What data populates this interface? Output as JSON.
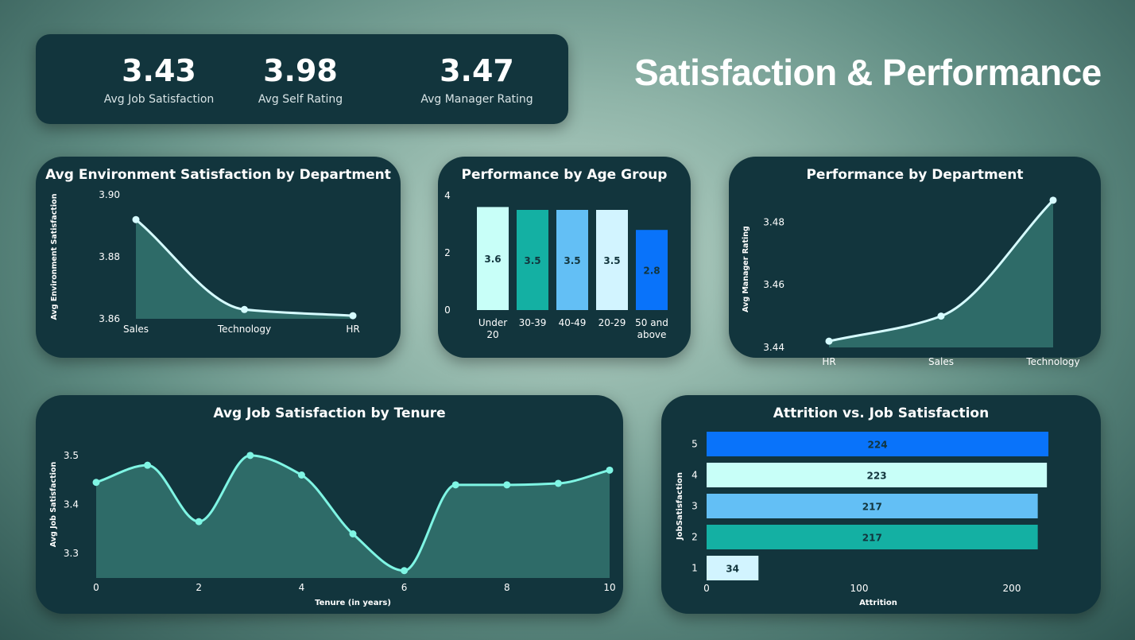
{
  "title": "Satisfaction & Performance",
  "kpis": [
    {
      "value": "3.43",
      "label": "Avg Job Satisfaction"
    },
    {
      "value": "3.98",
      "label": "Avg Self Rating"
    },
    {
      "value": "3.47",
      "label": "Avg Manager Rating"
    }
  ],
  "colors": {
    "panel": "#12353d",
    "area": "#2e6b68",
    "line_light": "#d6fbff",
    "line_mint": "#7ff5e4",
    "cyan_pale": "#c8fff8",
    "teal": "#14b0a3",
    "sky": "#63bff5",
    "pale": "#d2f4ff",
    "blue": "#0973fa"
  },
  "chart_data": [
    {
      "id": "env",
      "type": "area",
      "title": "Avg Environment Satisfaction by Department",
      "xlabel": "",
      "ylabel": "Avg Environment Satisfaction",
      "categories": [
        "Sales",
        "Technology",
        "HR"
      ],
      "values": [
        3.892,
        3.863,
        3.861
      ],
      "ylim": [
        3.86,
        3.9
      ],
      "yticks": [
        3.86,
        3.88,
        3.9
      ],
      "ytick_labels": [
        "3.86",
        "3.88",
        "3.90"
      ]
    },
    {
      "id": "age",
      "type": "bar",
      "title": "Performance by Age Group",
      "categories": [
        [
          "Under",
          "20"
        ],
        [
          "30-39"
        ],
        [
          "40-49"
        ],
        [
          "20-29"
        ],
        [
          "50 and",
          "above"
        ]
      ],
      "values": [
        3.6,
        3.5,
        3.5,
        3.5,
        2.8
      ],
      "data_labels": [
        "3.6",
        "3.5",
        "3.5",
        "3.5",
        "2.8"
      ],
      "bar_colors": [
        "#c8fff8",
        "#14b0a3",
        "#63bff5",
        "#d2f4ff",
        "#0973fa"
      ],
      "ylim": [
        0,
        4
      ],
      "yticks": [
        0,
        2,
        4
      ],
      "ytick_labels": [
        "0",
        "2",
        "4"
      ]
    },
    {
      "id": "dept",
      "type": "area",
      "title": "Performance by Department",
      "xlabel": "",
      "ylabel": "Avg Manager Rating",
      "categories": [
        "HR",
        "Sales",
        "Technology"
      ],
      "values": [
        3.442,
        3.45,
        3.487
      ],
      "ylim": [
        3.44,
        3.49
      ],
      "yticks": [
        3.44,
        3.46,
        3.48
      ],
      "ytick_labels": [
        "3.44",
        "3.46",
        "3.48"
      ]
    },
    {
      "id": "tenure",
      "type": "area",
      "title": "Avg Job Satisfaction by Tenure",
      "xlabel": "Tenure (in years)",
      "ylabel": "Avg Job Satisfaction",
      "x": [
        0,
        1,
        2,
        3,
        4,
        5,
        6,
        7,
        8,
        9,
        10
      ],
      "values": [
        3.445,
        3.48,
        3.365,
        3.5,
        3.46,
        3.34,
        3.265,
        3.44,
        3.44,
        3.443,
        3.47
      ],
      "xlim": [
        0,
        10
      ],
      "xticks": [
        0,
        2,
        4,
        6,
        8,
        10
      ],
      "xtick_labels": [
        "0",
        "2",
        "4",
        "6",
        "8",
        "10"
      ],
      "ylim": [
        3.25,
        3.55
      ],
      "yticks": [
        3.3,
        3.4,
        3.5
      ],
      "ytick_labels": [
        "3.3",
        "3.4",
        "3.5"
      ]
    },
    {
      "id": "attr",
      "type": "bar",
      "orientation": "horizontal",
      "title": "Attrition vs. Job Satisfaction",
      "xlabel": "Attrition",
      "ylabel": "JobSatisfaction",
      "categories": [
        "5",
        "4",
        "3",
        "2",
        "1"
      ],
      "values": [
        224,
        223,
        217,
        217,
        34
      ],
      "data_labels": [
        "224",
        "223",
        "217",
        "217",
        "34"
      ],
      "bar_colors": [
        "#0973fa",
        "#c8fff8",
        "#63bff5",
        "#14b0a3",
        "#d2f4ff"
      ],
      "xlim": [
        0,
        225
      ],
      "xticks": [
        0,
        100,
        200
      ],
      "xtick_labels": [
        "0",
        "100",
        "200"
      ]
    }
  ]
}
